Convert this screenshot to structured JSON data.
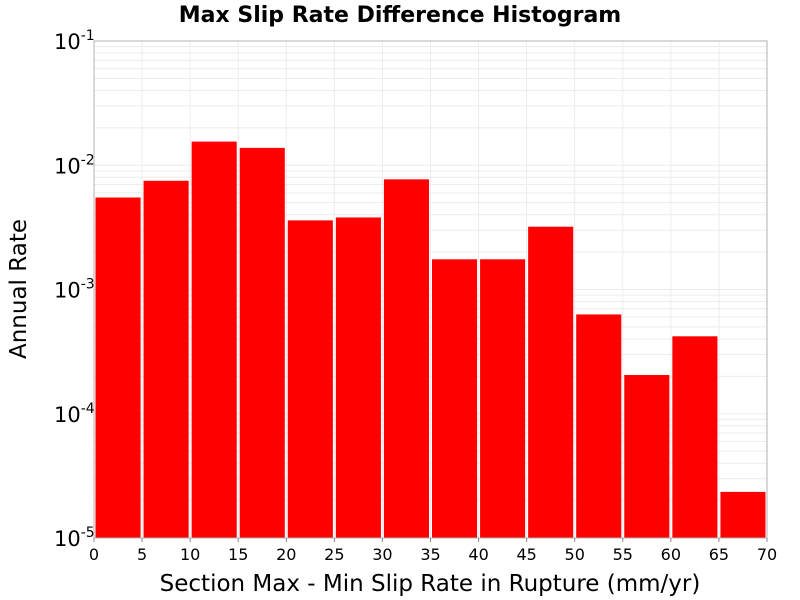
{
  "chart_data": {
    "type": "bar",
    "title": "Max Slip Rate Difference Histogram",
    "xlabel": "Section Max - Min Slip Rate in Rupture (mm/yr)",
    "ylabel": "Annual Rate",
    "xlim": [
      0,
      70
    ],
    "ylim": [
      1e-05,
      0.1
    ],
    "yscale": "log",
    "grid": true,
    "bar_color": "#ff0000",
    "x_ticks": [
      "0",
      "5",
      "10",
      "15",
      "20",
      "25",
      "30",
      "35",
      "40",
      "45",
      "50",
      "55",
      "60",
      "65",
      "70"
    ],
    "y_ticks": [
      {
        "base": "10",
        "exp": "-1"
      },
      {
        "base": "10",
        "exp": "-2"
      },
      {
        "base": "10",
        "exp": "-3"
      },
      {
        "base": "10",
        "exp": "-4"
      },
      {
        "base": "10",
        "exp": "-5"
      }
    ],
    "bins": [
      {
        "x0": 0,
        "x1": 5,
        "value": 0.0055
      },
      {
        "x0": 5,
        "x1": 10,
        "value": 0.0075
      },
      {
        "x0": 10,
        "x1": 15,
        "value": 0.0155
      },
      {
        "x0": 15,
        "x1": 20,
        "value": 0.0138
      },
      {
        "x0": 20,
        "x1": 25,
        "value": 0.0036
      },
      {
        "x0": 25,
        "x1": 30,
        "value": 0.0038
      },
      {
        "x0": 30,
        "x1": 35,
        "value": 0.0077
      },
      {
        "x0": 35,
        "x1": 40,
        "value": 0.00175
      },
      {
        "x0": 40,
        "x1": 45,
        "value": 0.00175
      },
      {
        "x0": 45,
        "x1": 50,
        "value": 0.0032
      },
      {
        "x0": 50,
        "x1": 55,
        "value": 0.00063
      },
      {
        "x0": 55,
        "x1": 60,
        "value": 0.000205
      },
      {
        "x0": 60,
        "x1": 65,
        "value": 0.00042
      },
      {
        "x0": 65,
        "x1": 70,
        "value": 2.35e-05
      }
    ]
  }
}
